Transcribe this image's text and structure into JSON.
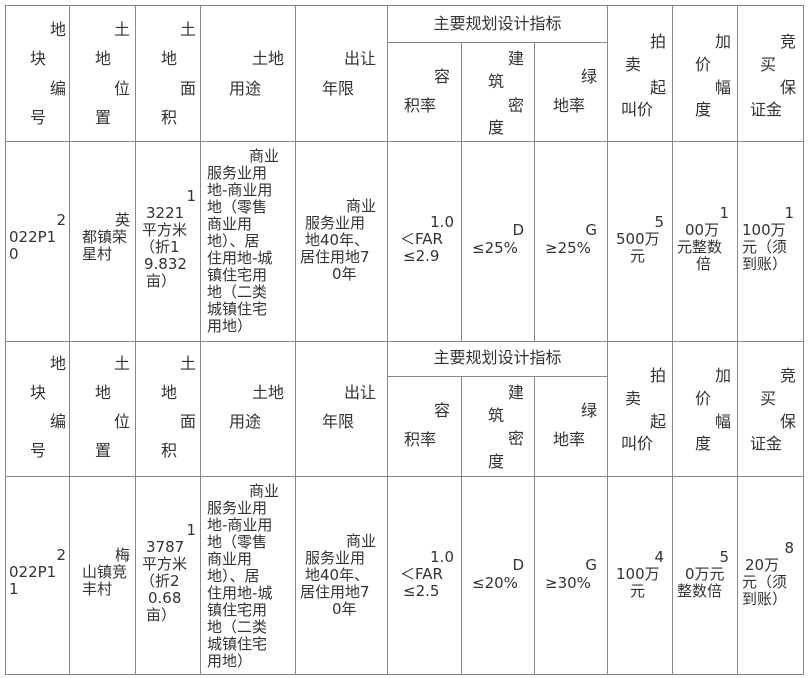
{
  "headers": {
    "plot_no": [
      "地",
      "块",
      "编",
      "号"
    ],
    "location": [
      "土",
      "地",
      "位",
      "置"
    ],
    "area": [
      "土",
      "地",
      "面",
      "积"
    ],
    "use": [
      "土地",
      "用途"
    ],
    "term": [
      "出让",
      "年限"
    ],
    "indicators_group": "主要规划设计指标",
    "far": [
      "容",
      "积率"
    ],
    "density": [
      "建",
      "筑",
      "密",
      "度"
    ],
    "green": [
      "绿",
      "地率"
    ],
    "start_price": [
      "拍",
      "卖",
      "起",
      "叫价"
    ],
    "increment": [
      "加",
      "价",
      "幅",
      "度"
    ],
    "deposit": [
      "竞",
      "买",
      "保",
      "证金"
    ]
  },
  "rows": [
    {
      "plot_no": [
        "2",
        "022P1",
        "0"
      ],
      "location": [
        "英",
        "都镇荣",
        "星村"
      ],
      "area": [
        "1",
        "3221",
        "平方米",
        "（折1",
        "9.832",
        "亩）"
      ],
      "use": [
        "商业",
        "服务业用",
        "地-商业用",
        "地（零售",
        "商业用",
        "地）、居",
        "住用地-城",
        "镇住宅用",
        "地（二类",
        "城镇住宅",
        "用地）"
      ],
      "term": [
        "商业",
        "服务业用",
        "地40年、",
        "居住用地7",
        "0年"
      ],
      "far": [
        "1.0",
        "＜FAR",
        "≤2.9"
      ],
      "density": [
        "D",
        "≤25%"
      ],
      "green": [
        "G",
        "≥25%"
      ],
      "start_price": [
        "5",
        "500万",
        "元"
      ],
      "increment": [
        "1",
        "00万",
        "元整数",
        "倍"
      ],
      "deposit": [
        "1",
        "100万",
        "元（须",
        "到账）"
      ]
    },
    {
      "plot_no": [
        "2",
        "022P1",
        "1"
      ],
      "location": [
        "梅",
        "山镇竞",
        "丰村"
      ],
      "area": [
        "1",
        "3787",
        "平方米",
        "（折2",
        "0.68",
        "亩）"
      ],
      "use": [
        "商业",
        "服务业用",
        "地-商业用",
        "地（零售",
        "商业用",
        "地）、居",
        "住用地-城",
        "镇住宅用",
        "地（二类",
        "城镇住宅",
        "用地）"
      ],
      "term": [
        "商业",
        "服务业用",
        "地40年、",
        "居住用地7",
        "0年"
      ],
      "far": [
        "1.0",
        "＜FAR",
        "≤2.5"
      ],
      "density": [
        "D",
        "≤20%"
      ],
      "green": [
        "G",
        "≥30%"
      ],
      "start_price": [
        "4",
        "100万",
        "元"
      ],
      "increment": [
        "5",
        "0万元",
        "整数倍"
      ],
      "deposit": [
        "8",
        "20万",
        "元（须",
        "到账）"
      ]
    }
  ]
}
